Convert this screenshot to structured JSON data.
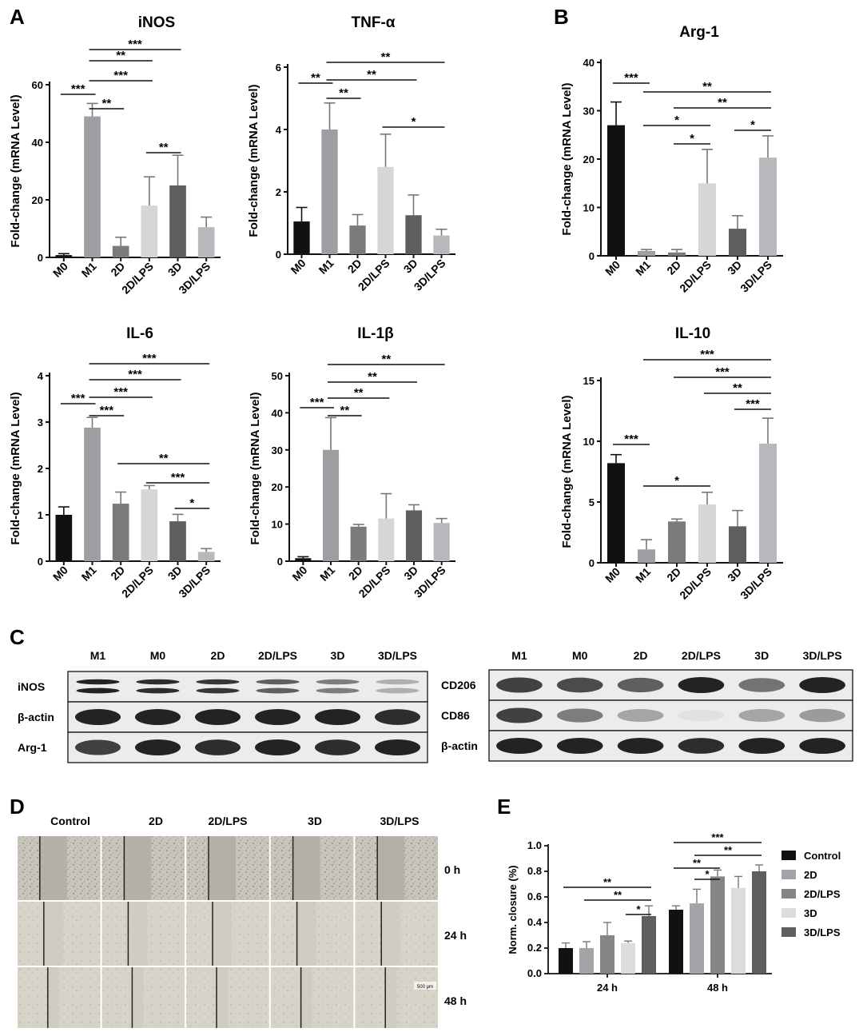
{
  "panel_labels": {
    "A": "A",
    "B": "B",
    "C": "C",
    "D": "D",
    "E": "E"
  },
  "bar_colors": [
    "#111111",
    "#9e9ea2",
    "#7b7b7e",
    "#d6d6d6",
    "#5e5e60",
    "#b7b7bc"
  ],
  "chart_data": [
    {
      "id": "inos",
      "type": "bar",
      "title": "iNOS",
      "ylabel": "Fold-change (mRNA Level)",
      "categories": [
        "M0",
        "M1",
        "2D",
        "2D/LPS",
        "3D",
        "3D/LPS"
      ],
      "values": [
        0.8,
        49,
        4,
        18,
        25,
        10.5
      ],
      "errors": [
        0.5,
        4.5,
        3,
        10,
        10.5,
        3.5
      ],
      "ylim": [
        0,
        60
      ],
      "yticks": [
        0,
        20,
        40,
        60
      ],
      "significance": [
        {
          "from": 1,
          "to": 4,
          "label": "***"
        },
        {
          "from": 1,
          "to": 3,
          "label": "**"
        },
        {
          "from": 1,
          "to": 3,
          "label": "***"
        },
        {
          "from": 0,
          "to": 1,
          "label": "***"
        },
        {
          "from": 1,
          "to": 2,
          "label": "**"
        },
        {
          "from": 3,
          "to": 4,
          "label": "**"
        }
      ]
    },
    {
      "id": "tnfa",
      "type": "bar",
      "title": "TNF-α",
      "ylabel": "Fold-change (mRNA Level)",
      "categories": [
        "M0",
        "M1",
        "2D",
        "2D/LPS",
        "3D",
        "3D/LPS"
      ],
      "values": [
        1.05,
        4.0,
        0.92,
        2.8,
        1.25,
        0.6
      ],
      "errors": [
        0.45,
        0.85,
        0.35,
        1.05,
        0.65,
        0.2
      ],
      "ylim": [
        0,
        6
      ],
      "yticks": [
        0,
        2,
        4,
        6
      ],
      "significance": [
        {
          "from": 1,
          "to": 5,
          "label": "**"
        },
        {
          "from": 1,
          "to": 4,
          "label": "**"
        },
        {
          "from": 0,
          "to": 1,
          "label": "**"
        },
        {
          "from": 1,
          "to": 2,
          "label": "**"
        },
        {
          "from": 3,
          "to": 5,
          "label": "*"
        }
      ]
    },
    {
      "id": "arg1",
      "type": "bar",
      "title": "Arg-1",
      "ylabel": "Fold-change (mRNA Level)",
      "categories": [
        "M0",
        "M1",
        "2D",
        "2D/LPS",
        "3D",
        "3D/LPS"
      ],
      "values": [
        27,
        1,
        0.7,
        15,
        5.6,
        20.3
      ],
      "errors": [
        4.8,
        0.3,
        0.6,
        7,
        2.7,
        4.5
      ],
      "ylim": [
        0,
        40
      ],
      "yticks": [
        0,
        10,
        20,
        30,
        40
      ],
      "significance": [
        {
          "from": 0,
          "to": 1,
          "label": "***"
        },
        {
          "from": 1,
          "to": 5,
          "label": "**"
        },
        {
          "from": 2,
          "to": 5,
          "label": "**"
        },
        {
          "from": 1,
          "to": 3,
          "label": "*"
        },
        {
          "from": 2,
          "to": 3,
          "label": "*"
        },
        {
          "from": 4,
          "to": 5,
          "label": "*"
        }
      ]
    },
    {
      "id": "il6",
      "type": "bar",
      "title": "IL-6",
      "ylabel": "Fold-change (mRNA Level)",
      "categories": [
        "M0",
        "M1",
        "2D",
        "2D/LPS",
        "3D",
        "3D/LPS"
      ],
      "values": [
        1.0,
        2.88,
        1.24,
        1.55,
        0.86,
        0.2
      ],
      "errors": [
        0.17,
        0.22,
        0.25,
        0.08,
        0.15,
        0.07
      ],
      "ylim": [
        0,
        4
      ],
      "yticks": [
        0,
        1,
        2,
        3,
        4
      ],
      "significance": [
        {
          "from": 1,
          "to": 5,
          "label": "***"
        },
        {
          "from": 1,
          "to": 4,
          "label": "***"
        },
        {
          "from": 1,
          "to": 3,
          "label": "***"
        },
        {
          "from": 0,
          "to": 1,
          "label": "***"
        },
        {
          "from": 1,
          "to": 2,
          "label": "***"
        },
        {
          "from": 2,
          "to": 5,
          "label": "**"
        },
        {
          "from": 3,
          "to": 5,
          "label": "***"
        },
        {
          "from": 4,
          "to": 5,
          "label": "*"
        }
      ]
    },
    {
      "id": "il1b",
      "type": "bar",
      "title": "IL-1β",
      "ylabel": "Fold-change (mRNA Level)",
      "categories": [
        "M0",
        "M1",
        "2D",
        "2D/LPS",
        "3D",
        "3D/LPS"
      ],
      "values": [
        0.8,
        30,
        9.3,
        11.5,
        13.7,
        10.3
      ],
      "errors": [
        0.4,
        8.7,
        0.6,
        6.7,
        1.5,
        1.2
      ],
      "ylim": [
        0,
        50
      ],
      "yticks": [
        0,
        10,
        20,
        30,
        40,
        50
      ],
      "significance": [
        {
          "from": 1,
          "to": 5,
          "label": "**"
        },
        {
          "from": 1,
          "to": 4,
          "label": "**"
        },
        {
          "from": 1,
          "to": 3,
          "label": "**"
        },
        {
          "from": 0,
          "to": 1,
          "label": "***"
        },
        {
          "from": 1,
          "to": 2,
          "label": "**"
        }
      ]
    },
    {
      "id": "il10",
      "type": "bar",
      "title": "IL-10",
      "ylabel": "Fold-change (mRNA Level)",
      "categories": [
        "M0",
        "M1",
        "2D",
        "2D/LPS",
        "3D",
        "3D/LPS"
      ],
      "values": [
        8.2,
        1.1,
        3.4,
        4.8,
        3.0,
        9.8
      ],
      "errors": [
        0.7,
        0.8,
        0.2,
        1.0,
        1.3,
        2.1
      ],
      "ylim": [
        0,
        15
      ],
      "yticks": [
        0,
        5,
        10,
        15
      ],
      "significance": [
        {
          "from": 1,
          "to": 5,
          "label": "***"
        },
        {
          "from": 2,
          "to": 5,
          "label": "***"
        },
        {
          "from": 3,
          "to": 5,
          "label": "**"
        },
        {
          "from": 4,
          "to": 5,
          "label": "***"
        },
        {
          "from": 0,
          "to": 1,
          "label": "***"
        },
        {
          "from": 1,
          "to": 3,
          "label": "*"
        }
      ]
    },
    {
      "id": "closure",
      "type": "bar",
      "ylabel": "Norm. closure (%)",
      "categories": [
        "24 h",
        "48 h"
      ],
      "series": [
        {
          "name": "Control",
          "values": [
            0.2,
            0.5
          ],
          "errors": [
            0.04,
            0.03
          ]
        },
        {
          "name": "2D",
          "values": [
            0.2,
            0.55
          ],
          "errors": [
            0.05,
            0.11
          ]
        },
        {
          "name": "2D/LPS",
          "values": [
            0.3,
            0.76
          ],
          "errors": [
            0.1,
            0.05
          ]
        },
        {
          "name": "3D",
          "values": [
            0.24,
            0.67
          ],
          "errors": [
            0.015,
            0.09
          ]
        },
        {
          "name": "3D/LPS",
          "values": [
            0.45,
            0.8
          ],
          "errors": [
            0.08,
            0.05
          ]
        }
      ],
      "ylim": [
        0,
        1.0
      ],
      "yticks": [
        "0.0",
        "0.2",
        "0.4",
        "0.6",
        "0.8",
        "1.0"
      ],
      "legend_position": "right",
      "significance": [
        {
          "group": 0,
          "from": 0,
          "to": 4,
          "label": "**"
        },
        {
          "group": 0,
          "from": 1,
          "to": 4,
          "label": "**"
        },
        {
          "group": 0,
          "from": 3,
          "to": 4,
          "label": "*"
        },
        {
          "group": 1,
          "from": 0,
          "to": 4,
          "label": "***"
        },
        {
          "group": 1,
          "from": 1,
          "to": 4,
          "label": "**"
        },
        {
          "group": 1,
          "from": 0,
          "to": 2,
          "label": "**"
        },
        {
          "group": 1,
          "from": 1,
          "to": 2,
          "label": "*"
        }
      ]
    }
  ],
  "western_blot": {
    "left": {
      "lanes": [
        "M1",
        "M0",
        "2D",
        "2D/LPS",
        "3D",
        "3D/LPS"
      ],
      "rows": [
        {
          "label": "iNOS",
          "type": "double",
          "intensity": [
            1.0,
            0.95,
            0.9,
            0.7,
            0.55,
            0.3
          ]
        },
        {
          "label": "β-actin",
          "type": "single",
          "intensity": [
            1.0,
            1.0,
            1.0,
            1.0,
            1.0,
            0.95
          ]
        },
        {
          "label": "Arg-1",
          "type": "single",
          "intensity": [
            0.85,
            1.0,
            0.95,
            1.0,
            0.95,
            1.0
          ]
        }
      ]
    },
    "right": {
      "lanes": [
        "M1",
        "M0",
        "2D",
        "2D/LPS",
        "3D",
        "3D/LPS"
      ],
      "rows": [
        {
          "label": "CD206",
          "type": "single",
          "intensity": [
            0.85,
            0.8,
            0.7,
            1.0,
            0.6,
            1.0
          ]
        },
        {
          "label": "CD86",
          "type": "single",
          "intensity": [
            0.85,
            0.55,
            0.35,
            0.05,
            0.35,
            0.4
          ]
        },
        {
          "label": "β-actin",
          "type": "single",
          "intensity": [
            1.0,
            1.0,
            1.0,
            0.95,
            1.0,
            1.0
          ]
        }
      ]
    }
  },
  "scratch_assay": {
    "columns": [
      "Control",
      "2D",
      "2D/LPS",
      "3D",
      "3D/LPS"
    ],
    "rows": [
      "0 h",
      "24 h",
      "48 h"
    ],
    "scale_bar": "500 μm"
  }
}
